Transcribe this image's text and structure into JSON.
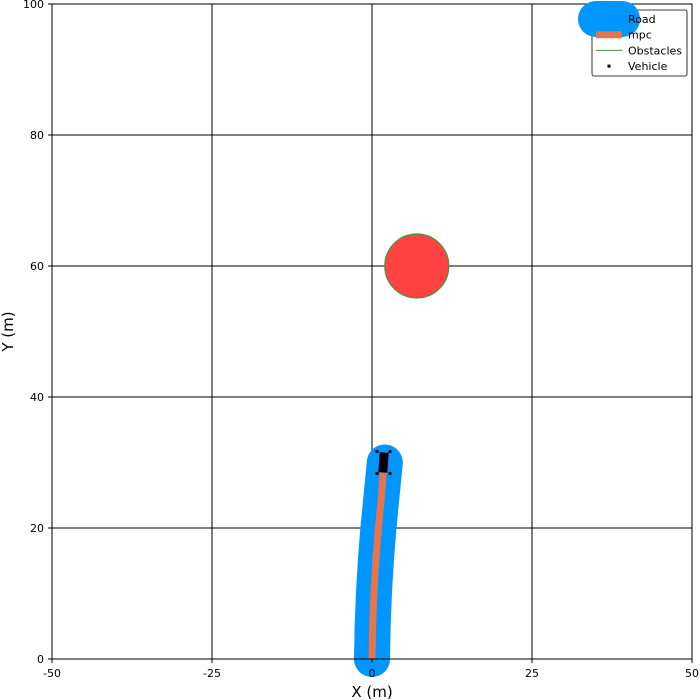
{
  "chart_data": {
    "type": "line",
    "title": "",
    "xlabel": "X (m)",
    "ylabel": "Y (m)",
    "xlim": [
      -50,
      50
    ],
    "ylim": [
      0,
      100
    ],
    "xticks": [
      -50,
      -25,
      0,
      25,
      50
    ],
    "yticks": [
      0,
      20,
      40,
      60,
      80,
      100
    ],
    "xtick_labels": [
      "-50",
      "-25",
      "0",
      "25",
      "50"
    ],
    "ytick_labels": [
      "0",
      "20",
      "40",
      "60",
      "80",
      "100"
    ],
    "grid": true,
    "legend_position": "top-right",
    "series": [
      {
        "name": "Road",
        "type": "line",
        "color": "#0096ff",
        "x": [
          0.0,
          0.1,
          0.3,
          0.6,
          1.0,
          1.5,
          2.0
        ],
        "y": [
          0,
          5,
          10,
          15,
          20,
          25,
          30
        ]
      },
      {
        "name": "mpc",
        "type": "line",
        "color": "#e8744f",
        "x": [
          0.0,
          0.1,
          0.3,
          0.6,
          1.0,
          1.4,
          1.8
        ],
        "y": [
          0,
          5,
          10,
          15,
          20,
          24,
          29
        ]
      },
      {
        "name": "Obstacles",
        "type": "circle",
        "color": "#ff4242",
        "edge_color": "#3a9a3a",
        "center": [
          7,
          60
        ],
        "radius": 5
      },
      {
        "name": "Vehicle",
        "type": "marker",
        "color": "#000000",
        "x": [
          1.8
        ],
        "y": [
          30
        ]
      }
    ]
  }
}
